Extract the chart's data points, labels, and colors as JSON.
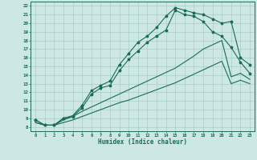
{
  "xlabel": "Humidex (Indice chaleur)",
  "bg_color": "#cde8e4",
  "line_color": "#1a6b5a",
  "grid_color": "#a8ccc8",
  "xlim": [
    -0.5,
    23.5
  ],
  "ylim": [
    7.5,
    22.5
  ],
  "xticks": [
    0,
    1,
    2,
    3,
    4,
    5,
    6,
    7,
    8,
    9,
    10,
    11,
    12,
    13,
    14,
    15,
    16,
    17,
    18,
    19,
    20,
    21,
    22,
    23
  ],
  "yticks": [
    8,
    9,
    10,
    11,
    12,
    13,
    14,
    15,
    16,
    17,
    18,
    19,
    20,
    21,
    22
  ],
  "hours": [
    0,
    1,
    2,
    3,
    4,
    5,
    6,
    7,
    8,
    9,
    10,
    11,
    12,
    13,
    14,
    15,
    16,
    17,
    18,
    19,
    20,
    21,
    22,
    23
  ],
  "top_line": [
    8.8,
    8.2,
    8.2,
    9.0,
    9.3,
    10.5,
    12.2,
    12.8,
    13.3,
    15.2,
    16.5,
    17.8,
    18.5,
    19.5,
    20.8,
    21.8,
    21.5,
    21.2,
    21.0,
    20.5,
    20.0,
    20.2,
    16.0,
    15.2
  ],
  "mid_line": [
    8.8,
    8.2,
    8.2,
    9.0,
    9.2,
    10.2,
    11.8,
    12.5,
    12.8,
    14.5,
    15.8,
    16.8,
    17.8,
    18.5,
    19.2,
    21.5,
    21.0,
    20.8,
    20.2,
    19.0,
    18.5,
    17.2,
    15.5,
    14.2
  ],
  "low_line1": [
    8.5,
    8.2,
    8.2,
    8.8,
    9.2,
    9.8,
    10.3,
    10.8,
    11.3,
    11.8,
    12.3,
    12.8,
    13.3,
    13.8,
    14.3,
    14.8,
    15.5,
    16.2,
    17.0,
    17.5,
    18.0,
    13.8,
    14.2,
    13.5
  ],
  "low_line2": [
    8.5,
    8.2,
    8.2,
    8.5,
    8.8,
    9.2,
    9.6,
    10.0,
    10.4,
    10.8,
    11.1,
    11.5,
    11.9,
    12.3,
    12.7,
    13.1,
    13.6,
    14.1,
    14.6,
    15.1,
    15.6,
    13.0,
    13.4,
    13.0
  ]
}
